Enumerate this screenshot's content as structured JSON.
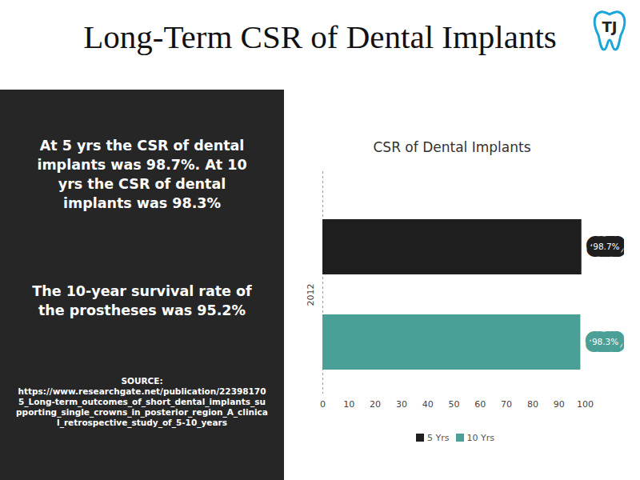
{
  "title": "Long-Term CSR of Dental Implants",
  "logo": "TJ",
  "panel": {
    "paragraphs": [
      "At 5 yrs the CSR of dental implants was 98.7%. At 10 yrs the CSR of dental implants was 98.3%",
      "The 10-year survival rate of the prostheses was 95.2%"
    ],
    "source_label": "SOURCE:",
    "source": "https://www.researchgate.net/publication/223981705_Long-term_outcomes_of_short_dental_implants_supporting_single_crowns_in_posterior_region_A_clinical_retrospective_study_of_5-10_years"
  },
  "chart_data": {
    "type": "bar",
    "title": "CSR of Dental Implants",
    "orientation": "horizontal",
    "categories": [
      "2012"
    ],
    "series": [
      {
        "name": "5 Yrs",
        "color": "#1e1e1e",
        "values": [
          98.7
        ],
        "value_labels": [
          "98.7%"
        ]
      },
      {
        "name": "10 Yrs",
        "color": "#4a9f96",
        "values": [
          98.3
        ],
        "value_labels": [
          "98.3%"
        ]
      }
    ],
    "xlim": [
      0,
      100
    ],
    "xticks": [
      0,
      10,
      20,
      30,
      40,
      50,
      60,
      70,
      80,
      90,
      100
    ],
    "data_labels": true,
    "legend": "bottom"
  }
}
